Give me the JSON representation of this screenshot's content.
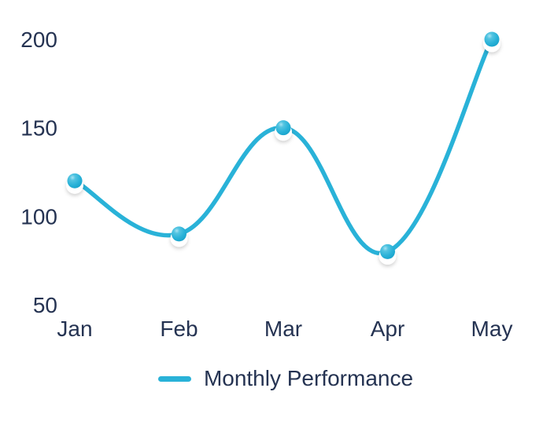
{
  "chart_data": {
    "type": "line",
    "title": "",
    "categories": [
      "Jan",
      "Feb",
      "Mar",
      "Apr",
      "May"
    ],
    "series": [
      {
        "name": "Monthly Performance",
        "values": [
          120,
          90,
          150,
          80,
          200
        ],
        "color": "#29b2d8"
      }
    ],
    "yticks": [
      200,
      150,
      100,
      50
    ],
    "ylim": [
      50,
      200
    ],
    "grid": false,
    "axis_lines": false,
    "legend_position": "bottom",
    "curve": "smooth",
    "marker_style": "glossy-ball",
    "text_color": "#253352",
    "background": "#ffffff"
  }
}
